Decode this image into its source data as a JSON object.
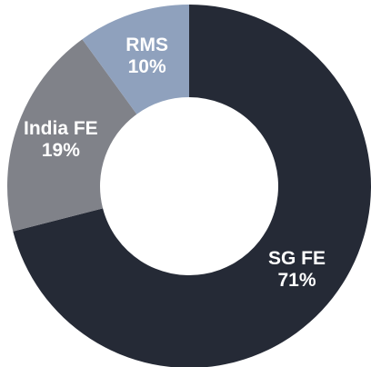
{
  "chart_data": {
    "type": "donut",
    "categories": [
      "SG FE",
      "India FE",
      "RMS"
    ],
    "values": [
      71,
      19,
      10
    ],
    "value_labels": [
      "71%",
      "19%",
      "10%"
    ],
    "colors": [
      "#252a36",
      "#808289",
      "#8fa1bd"
    ]
  }
}
